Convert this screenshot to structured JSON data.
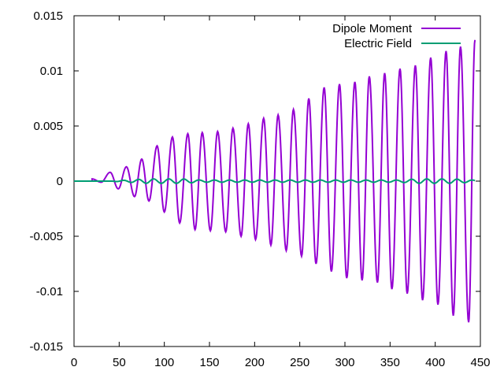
{
  "chart_data": {
    "type": "line",
    "title": "",
    "xlabel": "",
    "ylabel": "",
    "xlim": [
      0,
      450
    ],
    "ylim": [
      -0.015,
      0.015
    ],
    "x_ticks": [
      0,
      50,
      100,
      150,
      200,
      250,
      300,
      350,
      400,
      450
    ],
    "x_tick_labels": [
      "0",
      "50",
      "100",
      "150",
      "200",
      "250",
      "300",
      "350",
      "400",
      "450"
    ],
    "y_ticks": [
      -0.015,
      -0.01,
      -0.005,
      0,
      0.005,
      0.01,
      0.015
    ],
    "y_tick_labels": [
      "-0.015",
      "-0.01",
      "-0.005",
      "0",
      "0.005",
      "0.01",
      "0.015"
    ],
    "grid": false,
    "legend_position": "top-right",
    "series": [
      {
        "name": "Dipole Moment",
        "color": "#9400d3",
        "x": [
          0,
          20,
          40,
          58,
          75,
          92,
          109,
          126,
          142,
          159,
          176,
          193,
          210,
          226,
          243,
          260,
          277,
          294,
          311,
          327,
          344,
          361,
          378,
          395,
          412,
          428,
          444
        ],
        "y": [
          0,
          0.0002,
          0.0008,
          0.0013,
          0.002,
          0.0032,
          0.004,
          0.0043,
          0.0044,
          0.0045,
          0.0048,
          0.0052,
          0.0057,
          0.006,
          0.0065,
          0.0075,
          0.0085,
          0.0088,
          0.009,
          0.0095,
          0.0098,
          0.0102,
          0.0105,
          0.0112,
          0.0118,
          0.0122,
          0.0128
        ],
        "x_neg": [
          30,
          49,
          67,
          83,
          100,
          117,
          134,
          151,
          168,
          185,
          201,
          218,
          235,
          252,
          268,
          285,
          302,
          319,
          336,
          352,
          369,
          386,
          403,
          420,
          437
        ],
        "y_neg": [
          -0.0001,
          -0.0007,
          -0.0014,
          -0.0018,
          -0.0028,
          -0.0038,
          -0.0044,
          -0.0045,
          -0.0046,
          -0.005,
          -0.0053,
          -0.0058,
          -0.0063,
          -0.0068,
          -0.0075,
          -0.0082,
          -0.0088,
          -0.009,
          -0.0092,
          -0.0098,
          -0.0102,
          -0.0108,
          -0.0112,
          -0.0122,
          -0.0128
        ]
      },
      {
        "name": "Electric Field",
        "color": "#009e73",
        "x": [
          0,
          40,
          60,
          80,
          100,
          120,
          140,
          160,
          180,
          200,
          220,
          240,
          260,
          280,
          300,
          320,
          340,
          360,
          380,
          400,
          420,
          440
        ],
        "y": [
          0,
          0,
          0.0001,
          0.0002,
          0.0002,
          0.0002,
          0.0001,
          0.0001,
          0.0001,
          0.0001,
          0.0001,
          0.0001,
          0.0001,
          0.0001,
          0.0001,
          0.0001,
          0.0001,
          0.0001,
          0.0002,
          0.0002,
          0.0002,
          0.0001
        ]
      }
    ]
  }
}
